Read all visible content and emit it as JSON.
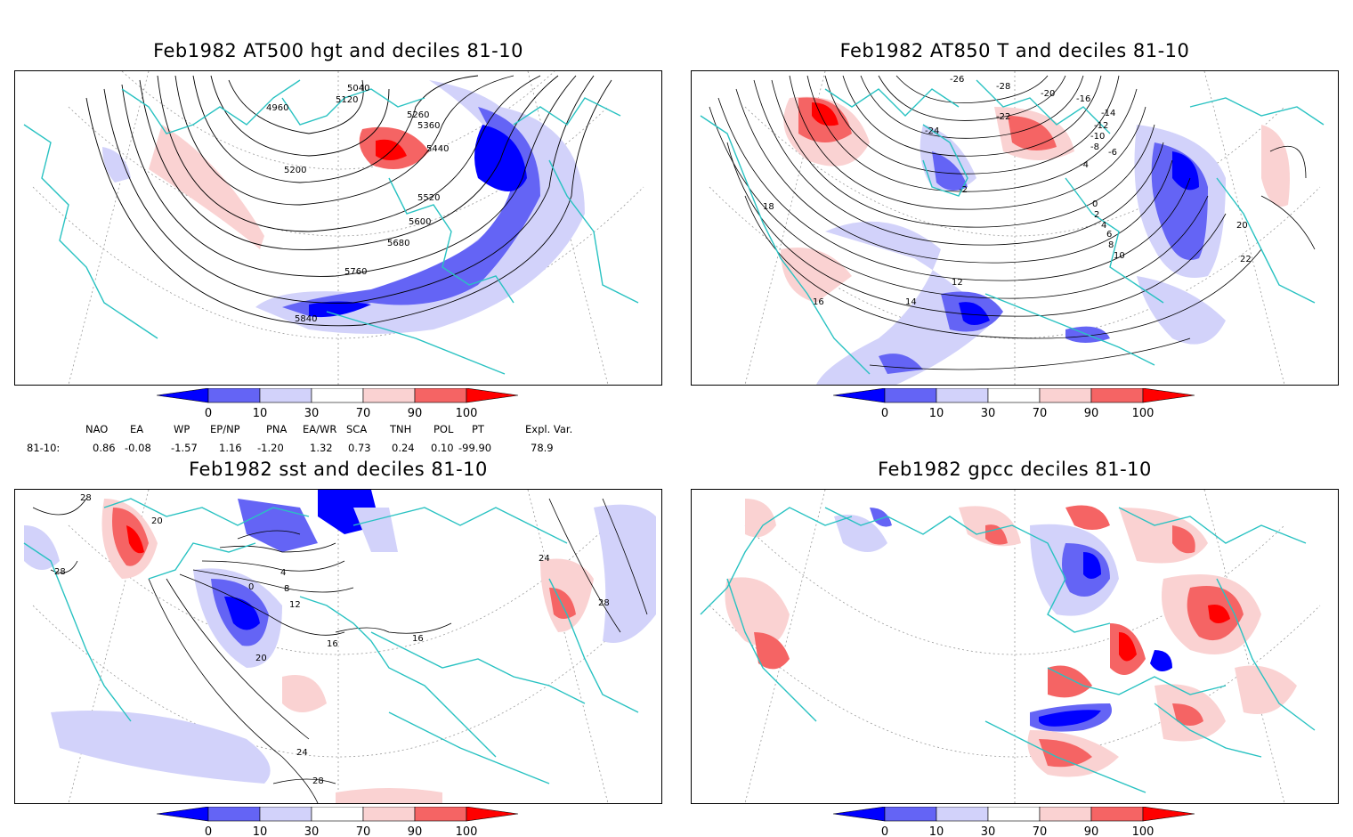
{
  "panels": [
    {
      "title": "Feb1982 AT500 hgt and deciles 81-10",
      "contour_labels": [
        "4960",
        "5040",
        "5120",
        "5200",
        "5260",
        "5360",
        "5440",
        "5520",
        "5600",
        "5680",
        "5760",
        "5840"
      ]
    },
    {
      "title": "Feb1982 AT850 T and deciles 81-10",
      "contour_labels": [
        "-26",
        "-28",
        "-20",
        "-16",
        "-14",
        "-12",
        "-10",
        "-8",
        "-6",
        "-24",
        "-22",
        "-4",
        "-2",
        "0",
        "2",
        "4",
        "6",
        "8",
        "10",
        "12",
        "14",
        "16",
        "18",
        "20",
        "22"
      ]
    },
    {
      "title": "Feb1982 sst and deciles 81-10",
      "contour_labels": [
        "28",
        "20",
        "0",
        "4",
        "8",
        "12",
        "16",
        "24"
      ]
    },
    {
      "title": "Feb1982 gpcc deciles 81-10",
      "contour_labels": []
    }
  ],
  "colorbar": {
    "labels": [
      "0",
      "10",
      "30",
      "70",
      "90",
      "100"
    ],
    "colors": [
      "#0000ff",
      "#6464f5",
      "#d2d2fa",
      "#ffffff",
      "#fad2d2",
      "#f56464",
      "#ff0000"
    ]
  },
  "teleconnections": {
    "headers": [
      "NAO",
      "EA",
      "WP",
      "EP/NP",
      "PNA",
      "EA/WR",
      "SCA",
      "TNH",
      "POL",
      "PT",
      "Expl. Var."
    ],
    "row_label": "81-10:",
    "values": [
      "0.86",
      "-0.08",
      "-1.57",
      "1.16",
      "-1.20",
      "1.32",
      "0.73",
      "0.24",
      "0.10",
      "-99.90",
      "78.9"
    ]
  },
  "map_colors": {
    "coast": "#29c2c2",
    "grid": "#999999",
    "contour": "#000000"
  }
}
